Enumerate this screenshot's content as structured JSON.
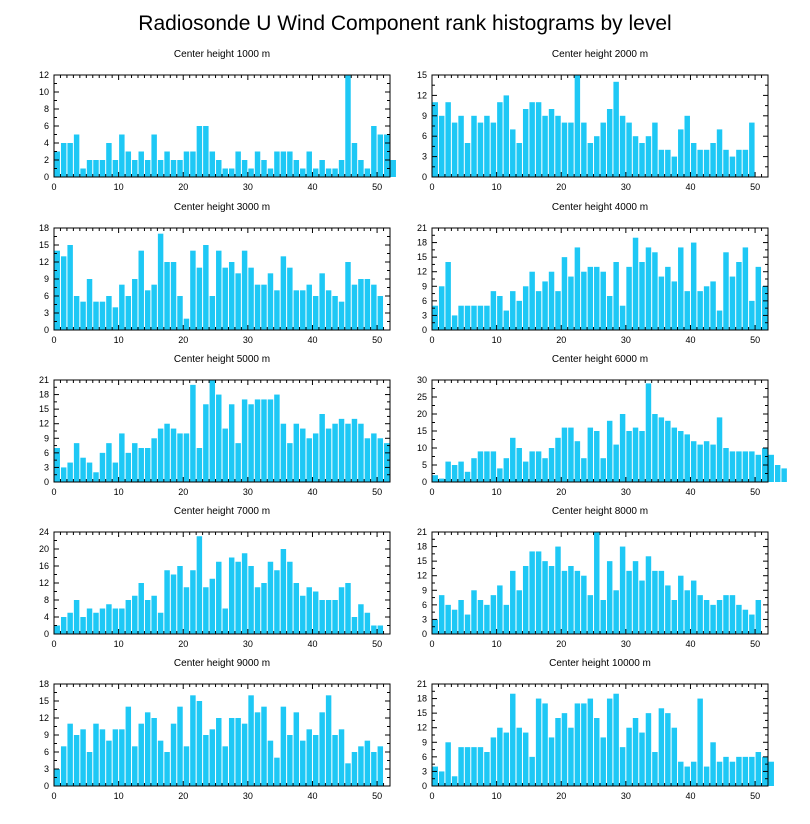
{
  "title": "Radiosonde U Wind Component rank histograms by level",
  "colors": {
    "bar": "#1EC8F5",
    "bar_edge": "#ffffff",
    "axis": "#000000"
  },
  "chart_data": [
    {
      "type": "bar",
      "title": "Center height 1000 m",
      "xlim": [
        0,
        52
      ],
      "ylim": [
        0,
        12
      ],
      "xticks": [
        0,
        10,
        20,
        30,
        40,
        50
      ],
      "yticks": [
        0,
        2,
        4,
        6,
        8,
        10,
        12
      ],
      "values": [
        3,
        4,
        4,
        5,
        1,
        2,
        2,
        2,
        4,
        2,
        5,
        3,
        2,
        3,
        2,
        5,
        2,
        3,
        2,
        2,
        3,
        3,
        6,
        6,
        3,
        2,
        1,
        1,
        3,
        2,
        1,
        3,
        2,
        1,
        3,
        3,
        3,
        2,
        1,
        3,
        1,
        2,
        1,
        1,
        2,
        12,
        4,
        2,
        1,
        6,
        5,
        5,
        2
      ]
    },
    {
      "type": "bar",
      "title": "Center height 2000 m",
      "xlim": [
        0,
        52
      ],
      "ylim": [
        0,
        15
      ],
      "xticks": [
        0,
        10,
        20,
        30,
        40,
        50
      ],
      "yticks": [
        0,
        3,
        6,
        9,
        12,
        15
      ],
      "values": [
        11,
        9,
        11,
        8,
        9,
        5,
        9,
        8,
        9,
        8,
        11,
        12,
        7,
        5,
        10,
        11,
        11,
        9,
        10,
        9,
        8,
        8,
        15,
        8,
        5,
        6,
        8,
        10,
        14,
        9,
        8,
        6,
        5,
        6,
        8,
        4,
        4,
        3,
        7,
        9,
        5,
        4,
        4,
        5,
        7,
        4,
        3,
        4,
        4,
        8
      ]
    },
    {
      "type": "bar",
      "title": "Center height 3000 m",
      "xlim": [
        0,
        52
      ],
      "ylim": [
        0,
        18
      ],
      "xticks": [
        0,
        10,
        20,
        30,
        40,
        50
      ],
      "yticks": [
        0,
        3,
        6,
        9,
        12,
        15,
        18
      ],
      "values": [
        14,
        13,
        15,
        6,
        5,
        9,
        5,
        5,
        6,
        4,
        8,
        6,
        9,
        14,
        7,
        8,
        17,
        12,
        12,
        6,
        2,
        14,
        11,
        15,
        6,
        14,
        11,
        12,
        10,
        14,
        11,
        8,
        8,
        10,
        7,
        13,
        11,
        7,
        7,
        8,
        6,
        10,
        7,
        6,
        5,
        12,
        8,
        9,
        9,
        8,
        6
      ]
    },
    {
      "type": "bar",
      "title": "Center height 4000 m",
      "xlim": [
        0,
        52
      ],
      "ylim": [
        0,
        21
      ],
      "xticks": [
        0,
        10,
        20,
        30,
        40,
        50
      ],
      "yticks": [
        0,
        3,
        6,
        9,
        12,
        15,
        18,
        21
      ],
      "values": [
        5,
        9,
        14,
        3,
        5,
        5,
        5,
        5,
        5,
        8,
        7,
        4,
        8,
        6,
        9,
        12,
        8,
        10,
        12,
        8,
        15,
        11,
        17,
        12,
        13,
        13,
        12,
        7,
        14,
        5,
        13,
        19,
        14,
        17,
        16,
        11,
        13,
        10,
        17,
        8,
        18,
        8,
        9,
        10,
        4,
        16,
        11,
        14,
        17,
        6,
        13,
        9
      ]
    },
    {
      "type": "bar",
      "title": "Center height 5000 m",
      "xlim": [
        0,
        52
      ],
      "ylim": [
        0,
        21
      ],
      "xticks": [
        0,
        10,
        20,
        30,
        40,
        50
      ],
      "yticks": [
        0,
        3,
        6,
        9,
        12,
        15,
        18,
        21
      ],
      "values": [
        7,
        3,
        4,
        8,
        5,
        4,
        2,
        6,
        8,
        4,
        10,
        6,
        8,
        7,
        7,
        9,
        11,
        12,
        11,
        10,
        10,
        20,
        7,
        16,
        21,
        18,
        11,
        16,
        8,
        17,
        16,
        17,
        17,
        17,
        18,
        12,
        8,
        12,
        11,
        9,
        10,
        14,
        11,
        12,
        13,
        12,
        13,
        12,
        9,
        10,
        9,
        8
      ]
    },
    {
      "type": "bar",
      "title": "Center height 6000 m",
      "xlim": [
        0,
        52
      ],
      "ylim": [
        0,
        30
      ],
      "xticks": [
        0,
        10,
        20,
        30,
        40,
        50
      ],
      "yticks": [
        0,
        5,
        10,
        15,
        20,
        25,
        30
      ],
      "values": [
        2,
        1,
        6,
        5,
        6,
        3,
        7,
        9,
        9,
        9,
        4,
        7,
        13,
        10,
        6,
        9,
        9,
        7,
        10,
        13,
        16,
        16,
        12,
        7,
        16,
        15,
        7,
        18,
        11,
        20,
        15,
        16,
        15,
        29,
        20,
        19,
        18,
        16,
        15,
        14,
        12,
        11,
        12,
        11,
        19,
        10,
        9,
        9,
        9,
        9,
        8,
        10,
        8,
        5,
        4
      ]
    },
    {
      "type": "bar",
      "title": "Center height 7000 m",
      "xlim": [
        0,
        52
      ],
      "ylim": [
        0,
        24
      ],
      "xticks": [
        0,
        10,
        20,
        30,
        40,
        50
      ],
      "yticks": [
        0,
        4,
        8,
        12,
        16,
        20,
        24
      ],
      "values": [
        2,
        4,
        5,
        8,
        4,
        6,
        5,
        6,
        7,
        6,
        6,
        8,
        9,
        12,
        8,
        9,
        5,
        15,
        14,
        16,
        11,
        15,
        23,
        11,
        13,
        17,
        6,
        18,
        17,
        19,
        16,
        11,
        12,
        17,
        15,
        20,
        17,
        12,
        9,
        11,
        10,
        8,
        8,
        8,
        11,
        12,
        4,
        7,
        5,
        2,
        2
      ]
    },
    {
      "type": "bar",
      "title": "Center height 8000 m",
      "xlim": [
        0,
        52
      ],
      "ylim": [
        0,
        21
      ],
      "xticks": [
        0,
        10,
        20,
        30,
        40,
        50
      ],
      "yticks": [
        0,
        3,
        6,
        9,
        12,
        15,
        18,
        21
      ],
      "values": [
        3,
        8,
        6,
        5,
        7,
        4,
        9,
        7,
        6,
        8,
        10,
        6,
        13,
        9,
        14,
        17,
        17,
        15,
        14,
        18,
        13,
        14,
        13,
        12,
        8,
        21,
        7,
        15,
        9,
        18,
        13,
        15,
        11,
        16,
        13,
        13,
        10,
        7,
        12,
        9,
        11,
        8,
        7,
        6,
        7,
        8,
        8,
        6,
        5,
        4,
        7
      ]
    },
    {
      "type": "bar",
      "title": "Center height 9000 m",
      "xlim": [
        0,
        52
      ],
      "ylim": [
        0,
        18
      ],
      "xticks": [
        0,
        10,
        20,
        30,
        40,
        50
      ],
      "yticks": [
        0,
        3,
        6,
        9,
        12,
        15,
        18
      ],
      "values": [
        3,
        7,
        11,
        9,
        10,
        6,
        11,
        10,
        8,
        10,
        10,
        14,
        7,
        11,
        13,
        12,
        8,
        6,
        11,
        14,
        7,
        16,
        15,
        9,
        10,
        12,
        7,
        12,
        12,
        11,
        16,
        13,
        14,
        8,
        5,
        14,
        9,
        13,
        8,
        10,
        9,
        13,
        16,
        9,
        10,
        4,
        6,
        7,
        8,
        6,
        7
      ]
    },
    {
      "type": "bar",
      "title": "Center height 10000 m",
      "xlim": [
        0,
        52
      ],
      "ylim": [
        0,
        21
      ],
      "xticks": [
        0,
        10,
        20,
        30,
        40,
        50
      ],
      "yticks": [
        0,
        3,
        6,
        9,
        12,
        15,
        18,
        21
      ],
      "values": [
        4,
        3,
        9,
        2,
        8,
        8,
        8,
        8,
        7,
        10,
        12,
        11,
        19,
        12,
        11,
        6,
        18,
        17,
        10,
        14,
        15,
        12,
        17,
        17,
        18,
        14,
        10,
        18,
        19,
        8,
        12,
        14,
        11,
        15,
        7,
        16,
        15,
        12,
        5,
        4,
        5,
        18,
        4,
        9,
        5,
        6,
        5,
        6,
        6,
        6,
        7,
        6,
        5
      ]
    }
  ]
}
